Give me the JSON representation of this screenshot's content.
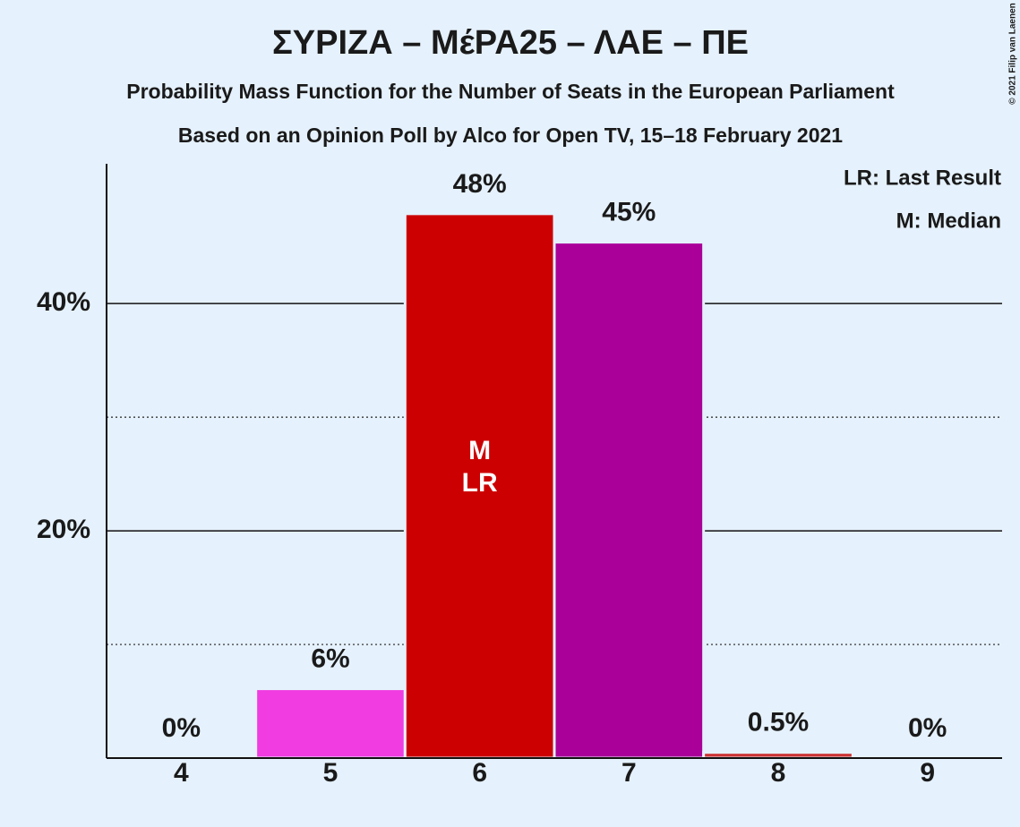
{
  "chart_data": {
    "type": "bar",
    "title": "ΣΥΡΙΖΑ – ΜέΡΑ25 – ΛΑΕ – ΠΕ",
    "subtitle": "Probability Mass Function for the Number of Seats in the European Parliament",
    "subtitle2": "Based on an Opinion Poll by Alco for Open TV, 15–18 February 2021",
    "copyright": "© 2021 Filip van Laenen",
    "categories": [
      "4",
      "5",
      "6",
      "7",
      "8",
      "9"
    ],
    "values": [
      0,
      6.1,
      47.9,
      45.4,
      0.5,
      0
    ],
    "value_labels": [
      "0%",
      "6%",
      "48%",
      "45%",
      "0.5%",
      "0%"
    ],
    "colors": [
      "#f03ce0",
      "#f03ce0",
      "#cc0000",
      "#aa0099",
      "#cc3333",
      "#cc3333"
    ],
    "ylim": [
      0,
      52.3
    ],
    "yticks": [
      {
        "value": 20,
        "label": "20%"
      },
      {
        "value": 40,
        "label": "40%"
      }
    ],
    "minor_yticks": [
      10,
      30
    ],
    "grid": true,
    "median": "6",
    "median_label": "M",
    "last_result": "6",
    "last_result_label": "LR",
    "legend": [
      "LR: Last Result",
      "M: Median"
    ]
  }
}
